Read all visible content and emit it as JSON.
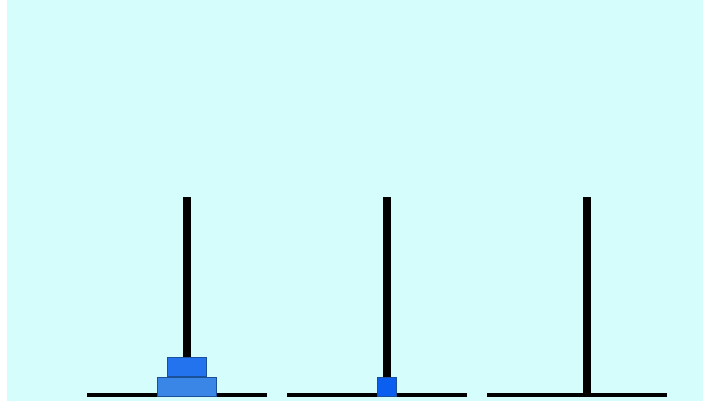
{
  "game": {
    "colors": {
      "background": "#d4fdfc",
      "rod": "#000000",
      "base": "#000000",
      "disk_outline": "#1a4f9a"
    },
    "pegs": [
      {
        "name": "left",
        "disks": [
          {
            "size": 3,
            "color": "#3a86e6"
          },
          {
            "size": 2,
            "color": "#2373ee"
          }
        ]
      },
      {
        "name": "middle",
        "disks": [
          {
            "size": 1,
            "color": "#0b5ff0"
          }
        ]
      },
      {
        "name": "right",
        "disks": []
      }
    ]
  }
}
